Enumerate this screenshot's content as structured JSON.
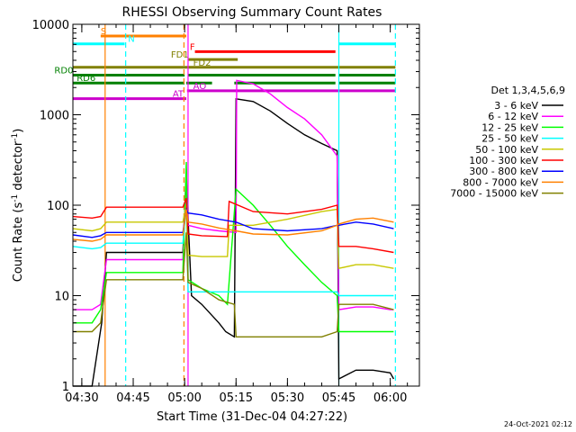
{
  "chart_data": {
    "type": "line",
    "title": "RHESSI Observing Summary Count Rates",
    "xlabel": "Start Time (31-Dec-04 04:27:22)",
    "ylabel": "Count Rate (s",
    "ylabel_sup": "-1",
    "ylabel_mid": " detector",
    "ylabel_sup2": "-1",
    "ylabel_end": ")",
    "ylog": true,
    "ylim": [
      1,
      10000
    ],
    "xlim_minutes": [
      27.4,
      128.5
    ],
    "x_ticks": [
      {
        "label": "04:30",
        "t": 30
      },
      {
        "label": "04:45",
        "t": 45
      },
      {
        "label": "05:00",
        "t": 60
      },
      {
        "label": "05:15",
        "t": 75
      },
      {
        "label": "05:30",
        "t": 90
      },
      {
        "label": "05:45",
        "t": 105
      },
      {
        "label": "06:00",
        "t": 120
      }
    ],
    "y_ticks": [
      {
        "label": "1",
        "v": 1
      },
      {
        "label": "10",
        "v": 10
      },
      {
        "label": "100",
        "v": 100
      },
      {
        "label": "1000",
        "v": 1000
      },
      {
        "label": "10000",
        "v": 10000
      }
    ],
    "legend_title": "Det 1,3,4,5,6,9",
    "legend_placement": "right",
    "series": [
      {
        "name": "3 - 6 keV",
        "color": "#000000",
        "points": [
          [
            27.4,
            1
          ],
          [
            33,
            1
          ],
          [
            35.8,
            5
          ],
          [
            37.2,
            30
          ],
          [
            59.5,
            30
          ],
          [
            60.5,
            200
          ],
          [
            62,
            10
          ],
          [
            65,
            8
          ],
          [
            70,
            5
          ],
          [
            72,
            4
          ],
          [
            74.5,
            3.5
          ],
          [
            75,
            1500
          ],
          [
            80,
            1400
          ],
          [
            85,
            1100
          ],
          [
            90,
            800
          ],
          [
            95,
            600
          ],
          [
            100,
            480
          ],
          [
            104.5,
            400
          ],
          [
            105,
            1.2
          ],
          [
            110,
            1.5
          ],
          [
            115,
            1.5
          ],
          [
            120,
            1.4
          ],
          [
            121,
            1.2
          ]
        ]
      },
      {
        "name": "6 - 12 keV",
        "color": "#ff00ff",
        "points": [
          [
            27.4,
            7
          ],
          [
            33,
            7
          ],
          [
            35.5,
            8
          ],
          [
            37.2,
            25
          ],
          [
            59.5,
            25
          ],
          [
            60.5,
            250
          ],
          [
            61,
            60
          ],
          [
            65,
            55
          ],
          [
            70,
            52
          ],
          [
            75,
            50
          ],
          [
            75.2,
            2400
          ],
          [
            80,
            2200
          ],
          [
            85,
            1700
          ],
          [
            90,
            1200
          ],
          [
            95,
            900
          ],
          [
            100,
            600
          ],
          [
            104.5,
            350
          ],
          [
            105,
            7
          ],
          [
            110,
            7.5
          ],
          [
            115,
            7.5
          ],
          [
            120,
            7
          ],
          [
            121,
            7
          ]
        ]
      },
      {
        "name": "12 - 25 keV",
        "color": "#00ff00",
        "points": [
          [
            27.4,
            5
          ],
          [
            33,
            5
          ],
          [
            35.5,
            7
          ],
          [
            37.2,
            18
          ],
          [
            59.5,
            18
          ],
          [
            60.5,
            300
          ],
          [
            61,
            15
          ],
          [
            65,
            12
          ],
          [
            70,
            10
          ],
          [
            72.5,
            8
          ],
          [
            75,
            150
          ],
          [
            80,
            100
          ],
          [
            85,
            60
          ],
          [
            90,
            35
          ],
          [
            95,
            22
          ],
          [
            100,
            14
          ],
          [
            104.5,
            10
          ],
          [
            105,
            4
          ],
          [
            110,
            4
          ],
          [
            115,
            4
          ],
          [
            120,
            4
          ],
          [
            121,
            4
          ]
        ]
      },
      {
        "name": "25 - 50 keV",
        "color": "#00ffff",
        "points": [
          [
            27.4,
            35
          ],
          [
            33,
            33
          ],
          [
            35.5,
            34
          ],
          [
            37.2,
            38
          ],
          [
            59.5,
            38
          ],
          [
            60.5,
            100
          ],
          [
            61,
            11
          ],
          [
            70,
            11
          ],
          [
            80,
            11
          ],
          [
            90,
            11
          ],
          [
            100,
            11
          ],
          [
            104.5,
            11
          ],
          [
            105,
            10
          ],
          [
            110,
            10
          ],
          [
            115,
            10
          ],
          [
            121,
            10
          ]
        ]
      },
      {
        "name": "50 - 100 keV",
        "color": "#c8c800",
        "points": [
          [
            27.4,
            55
          ],
          [
            33,
            52
          ],
          [
            35.5,
            55
          ],
          [
            37.2,
            65
          ],
          [
            59.5,
            65
          ],
          [
            60.5,
            100
          ],
          [
            61,
            28
          ],
          [
            65,
            27
          ],
          [
            72.5,
            27
          ],
          [
            73,
            60
          ],
          [
            80,
            60
          ],
          [
            90,
            70
          ],
          [
            100,
            85
          ],
          [
            104.5,
            90
          ],
          [
            105,
            20
          ],
          [
            110,
            22
          ],
          [
            115,
            22
          ],
          [
            121,
            20
          ]
        ]
      },
      {
        "name": "100 - 300 keV",
        "color": "#ff0000",
        "points": [
          [
            27.4,
            75
          ],
          [
            33,
            72
          ],
          [
            35.5,
            75
          ],
          [
            37.2,
            95
          ],
          [
            59.5,
            95
          ],
          [
            60.5,
            120
          ],
          [
            61,
            48
          ],
          [
            65,
            46
          ],
          [
            72.5,
            45
          ],
          [
            73,
            110
          ],
          [
            80,
            85
          ],
          [
            90,
            80
          ],
          [
            100,
            90
          ],
          [
            104.5,
            100
          ],
          [
            105,
            35
          ],
          [
            110,
            35
          ],
          [
            115,
            33
          ],
          [
            121,
            30
          ]
        ]
      },
      {
        "name": "300 - 800 keV",
        "color": "#0000ff",
        "points": [
          [
            27.4,
            47
          ],
          [
            33,
            44
          ],
          [
            35.5,
            46
          ],
          [
            37.2,
            50
          ],
          [
            59.5,
            50
          ],
          [
            60.5,
            90
          ],
          [
            61,
            82
          ],
          [
            65,
            78
          ],
          [
            70,
            70
          ],
          [
            75,
            65
          ],
          [
            80,
            55
          ],
          [
            90,
            52
          ],
          [
            100,
            55
          ],
          [
            104.5,
            60
          ],
          [
            105,
            60
          ],
          [
            110,
            65
          ],
          [
            115,
            62
          ],
          [
            121,
            55
          ]
        ]
      },
      {
        "name": "800 - 7000 keV",
        "color": "#ff8000",
        "points": [
          [
            27.4,
            42
          ],
          [
            33,
            40
          ],
          [
            35.5,
            42
          ],
          [
            37.2,
            47
          ],
          [
            59.5,
            47
          ],
          [
            60.5,
            90
          ],
          [
            61,
            65
          ],
          [
            65,
            62
          ],
          [
            70,
            56
          ],
          [
            75,
            52
          ],
          [
            80,
            48
          ],
          [
            90,
            47
          ],
          [
            100,
            52
          ],
          [
            104.5,
            60
          ],
          [
            105,
            62
          ],
          [
            110,
            70
          ],
          [
            115,
            72
          ],
          [
            121,
            65
          ]
        ]
      },
      {
        "name": "7000 - 15000 keV",
        "color": "#808000",
        "points": [
          [
            27.4,
            4
          ],
          [
            33,
            4
          ],
          [
            35.5,
            5
          ],
          [
            37.2,
            15
          ],
          [
            59.5,
            15
          ],
          [
            60.5,
            50
          ],
          [
            61,
            14
          ],
          [
            65,
            12
          ],
          [
            70,
            9
          ],
          [
            74.5,
            8
          ],
          [
            75,
            3.5
          ],
          [
            80,
            3.5
          ],
          [
            85,
            3.5
          ],
          [
            90,
            3.5
          ],
          [
            95,
            3.5
          ],
          [
            100,
            3.5
          ],
          [
            104.5,
            4
          ],
          [
            105,
            8
          ],
          [
            110,
            8
          ],
          [
            115,
            8
          ],
          [
            121,
            7
          ]
        ]
      }
    ],
    "flags": [
      {
        "label": "S",
        "color": "#ff8000",
        "level": 1,
        "spans": [
          [
            35.5,
            60.5
          ]
        ],
        "label_t": 35.5
      },
      {
        "label": "N",
        "color": "#00ffff",
        "level": 2,
        "spans": [
          [
            27.4,
            42.5
          ],
          [
            105,
            121.5
          ]
        ],
        "label_t": 43.5
      },
      {
        "label": "F",
        "color": "#ff0000",
        "level": 3,
        "spans": [
          [
            63,
            104
          ]
        ],
        "label_t": 61.5
      },
      {
        "label": "FD1",
        "color": "#808000",
        "level": 4,
        "spans": [
          [
            61,
            75.5
          ]
        ],
        "label_t": 56
      },
      {
        "label": "FD2",
        "color": "#808000",
        "level": 5,
        "spans": [
          [
            27.4,
            121.5
          ]
        ],
        "label_t": 62.5
      },
      {
        "label": "RD0",
        "color": "#008000",
        "level": 6,
        "spans": [
          [
            27.4,
            60
          ],
          [
            61,
            104
          ],
          [
            105,
            121.5
          ]
        ],
        "label_t": 22
      },
      {
        "label": "RD6",
        "color": "#008000",
        "level": 7,
        "spans": [
          [
            27.4,
            60
          ],
          [
            60.5,
            68
          ],
          [
            74.5,
            104
          ],
          [
            105,
            121.5
          ]
        ],
        "label_t": 28.5
      },
      {
        "label": "AO",
        "color": "#cc00cc",
        "level": 8,
        "spans": [
          [
            60.7,
            121.5
          ]
        ],
        "label_t": 62.5
      },
      {
        "label": "AT",
        "color": "#cc00cc",
        "level": 9,
        "spans": [
          [
            27.4,
            60.5
          ]
        ],
        "label_t": 56.5
      }
    ],
    "vlines": [
      {
        "t": 36.8,
        "color": "#ff8000",
        "dash": false
      },
      {
        "t": 42.8,
        "color": "#00ffff",
        "dash": true
      },
      {
        "t": 59.8,
        "color": "#ff8000",
        "dash": true
      },
      {
        "t": 61.0,
        "color": "#ff00ff",
        "dash": false
      },
      {
        "t": 105.0,
        "color": "#00ffff",
        "dash": false
      },
      {
        "t": 121.5,
        "color": "#00ffff",
        "dash": true
      }
    ]
  },
  "footer": {
    "timestamp": "24-Oct-2021 02:12"
  }
}
